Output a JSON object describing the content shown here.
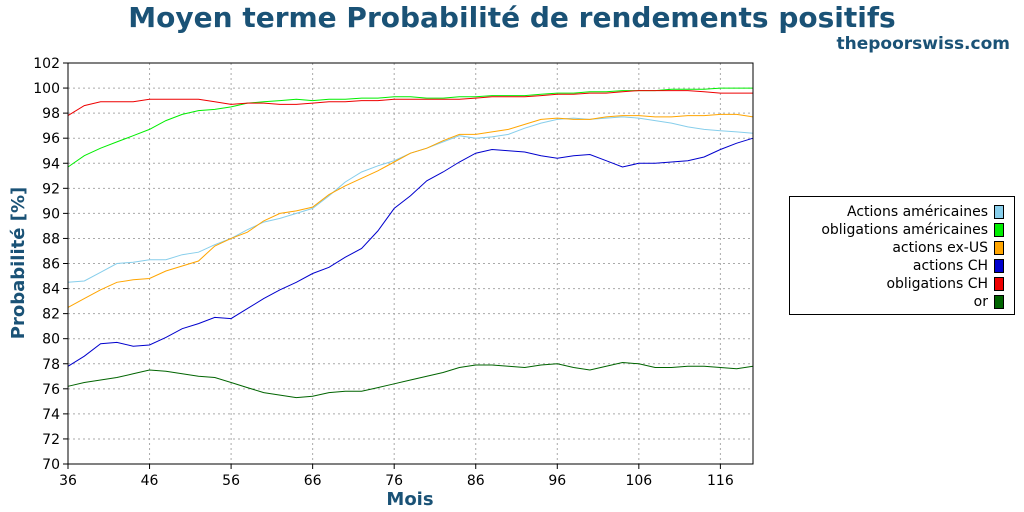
{
  "header": {
    "title": "Moyen terme Probabilité de rendements positifs",
    "brand": "thepoorswiss.com"
  },
  "chart_data": {
    "type": "line",
    "title": "Moyen terme Probabilité de rendements positifs",
    "xlabel": "Mois",
    "ylabel": "Probabilité [%]",
    "xlim": [
      36,
      120
    ],
    "ylim": [
      70,
      102
    ],
    "xticks": [
      36,
      46,
      56,
      66,
      76,
      86,
      96,
      106,
      116
    ],
    "yticks": [
      70,
      72,
      74,
      76,
      78,
      80,
      82,
      84,
      86,
      88,
      90,
      92,
      94,
      96,
      98,
      100,
      102
    ],
    "grid": true,
    "legend_position": "right",
    "x": [
      36,
      38,
      40,
      42,
      44,
      46,
      48,
      50,
      52,
      54,
      56,
      58,
      60,
      62,
      64,
      66,
      68,
      70,
      72,
      74,
      76,
      78,
      80,
      82,
      84,
      86,
      88,
      90,
      92,
      94,
      96,
      98,
      100,
      102,
      104,
      106,
      108,
      110,
      112,
      114,
      116,
      118,
      120
    ],
    "series": [
      {
        "name": "Actions américaines",
        "color": "#87ceeb",
        "values": [
          84.5,
          84.6,
          85.3,
          86.0,
          86.1,
          86.3,
          86.3,
          86.7,
          86.9,
          87.5,
          88.0,
          88.7,
          89.3,
          89.6,
          90.0,
          90.4,
          91.4,
          92.5,
          93.3,
          93.8,
          94.2,
          94.8,
          95.2,
          95.7,
          96.2,
          96.0,
          96.1,
          96.3,
          96.8,
          97.2,
          97.5,
          97.6,
          97.5,
          97.6,
          97.7,
          97.6,
          97.4,
          97.2,
          96.9,
          96.7,
          96.6,
          96.5,
          96.4
        ]
      },
      {
        "name": "obligations américaines",
        "color": "#00ee00",
        "values": [
          93.7,
          94.6,
          95.2,
          95.7,
          96.2,
          96.7,
          97.4,
          97.9,
          98.2,
          98.3,
          98.5,
          98.8,
          98.9,
          99.0,
          99.1,
          99.0,
          99.1,
          99.1,
          99.2,
          99.2,
          99.3,
          99.3,
          99.2,
          99.2,
          99.3,
          99.3,
          99.4,
          99.4,
          99.4,
          99.5,
          99.6,
          99.6,
          99.7,
          99.7,
          99.8,
          99.8,
          99.8,
          99.9,
          99.9,
          99.9,
          100.0,
          100.0,
          100.0
        ]
      },
      {
        "name": "actions ex-US",
        "color": "#ffa500",
        "values": [
          82.5,
          83.2,
          83.9,
          84.5,
          84.7,
          84.8,
          85.4,
          85.8,
          86.2,
          87.4,
          88.0,
          88.5,
          89.4,
          90.0,
          90.2,
          90.5,
          91.5,
          92.2,
          92.8,
          93.4,
          94.1,
          94.8,
          95.2,
          95.8,
          96.3,
          96.3,
          96.5,
          96.7,
          97.1,
          97.5,
          97.6,
          97.5,
          97.5,
          97.7,
          97.8,
          97.8,
          97.7,
          97.7,
          97.8,
          97.8,
          97.9,
          97.9,
          97.7
        ]
      },
      {
        "name": "actions CH",
        "color": "#0000cd",
        "values": [
          77.8,
          78.6,
          79.6,
          79.7,
          79.4,
          79.5,
          80.1,
          80.8,
          81.2,
          81.7,
          81.6,
          82.4,
          83.2,
          83.9,
          84.5,
          85.2,
          85.7,
          86.5,
          87.2,
          88.6,
          90.4,
          91.4,
          92.6,
          93.3,
          94.1,
          94.8,
          95.1,
          95.0,
          94.9,
          94.6,
          94.4,
          94.6,
          94.7,
          94.2,
          93.7,
          94.0,
          94.0,
          94.1,
          94.2,
          94.5,
          95.1,
          95.6,
          96.0
        ]
      },
      {
        "name": "obligations CH",
        "color": "#ee0000",
        "values": [
          97.8,
          98.6,
          98.9,
          98.9,
          98.9,
          99.1,
          99.1,
          99.1,
          99.1,
          98.9,
          98.7,
          98.8,
          98.8,
          98.7,
          98.7,
          98.8,
          98.9,
          98.9,
          99.0,
          99.0,
          99.1,
          99.1,
          99.1,
          99.1,
          99.1,
          99.2,
          99.3,
          99.3,
          99.3,
          99.4,
          99.5,
          99.5,
          99.6,
          99.6,
          99.7,
          99.8,
          99.8,
          99.8,
          99.8,
          99.7,
          99.6,
          99.6,
          99.6
        ]
      },
      {
        "name": "or",
        "color": "#006400",
        "values": [
          76.2,
          76.5,
          76.7,
          76.9,
          77.2,
          77.5,
          77.4,
          77.2,
          77.0,
          76.9,
          76.5,
          76.1,
          75.7,
          75.5,
          75.3,
          75.4,
          75.7,
          75.8,
          75.8,
          76.1,
          76.4,
          76.7,
          77.0,
          77.3,
          77.7,
          77.9,
          77.9,
          77.8,
          77.7,
          77.9,
          78.0,
          77.7,
          77.5,
          77.8,
          78.1,
          78.0,
          77.7,
          77.7,
          77.8,
          77.8,
          77.7,
          77.6,
          77.8
        ]
      }
    ]
  }
}
